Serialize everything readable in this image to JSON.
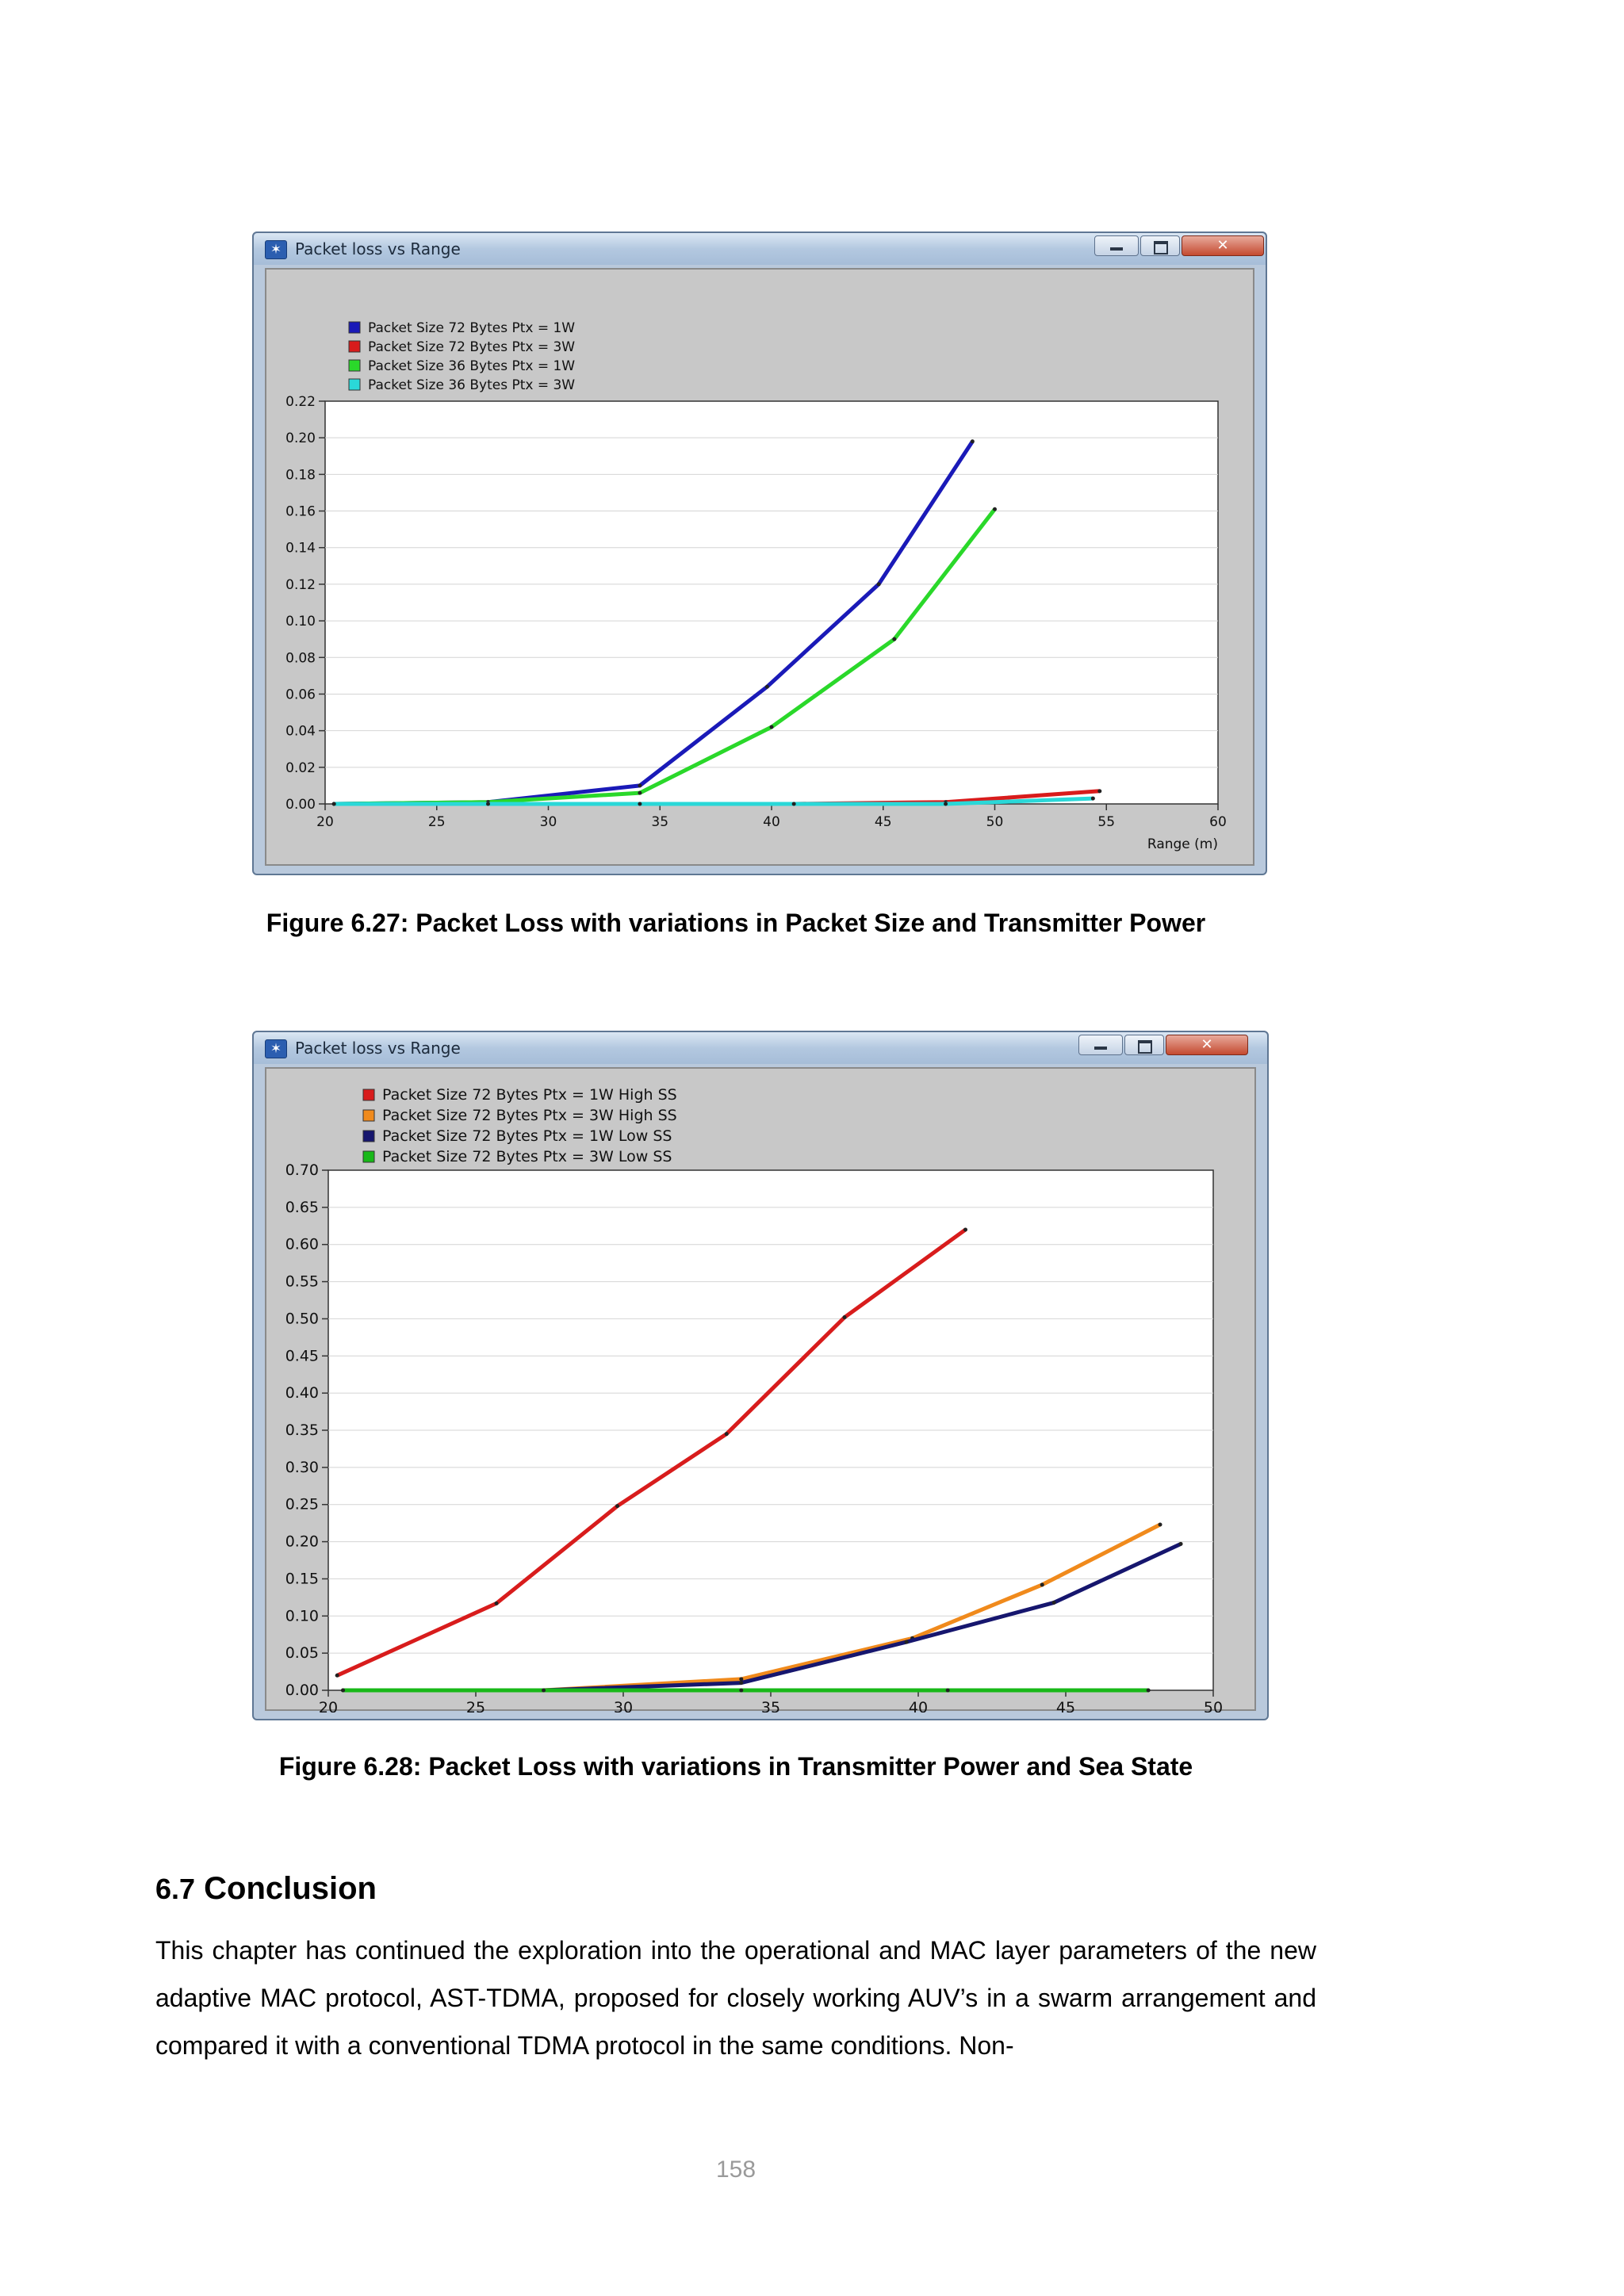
{
  "windows": [
    {
      "title": "Packet loss vs Range",
      "app_icon": "✶",
      "buttons": {
        "minimize": "minimize-icon",
        "maximize": "maximize-icon",
        "close": "✕"
      }
    },
    {
      "title": "Packet loss vs Range",
      "app_icon": "✶",
      "buttons": {
        "minimize": "minimize-icon",
        "maximize": "maximize-icon",
        "close": "✕"
      }
    }
  ],
  "chart_data": [
    {
      "type": "line",
      "title": "",
      "xlabel": "Range (m)",
      "ylabel": "",
      "xlim": [
        20,
        60
      ],
      "ylim": [
        0,
        0.22
      ],
      "xticks": [
        "20",
        "25",
        "30",
        "35",
        "40",
        "45",
        "50",
        "55",
        "60"
      ],
      "yticks": [
        "0.00",
        "0.02",
        "0.04",
        "0.06",
        "0.08",
        "0.10",
        "0.12",
        "0.14",
        "0.16",
        "0.18",
        "0.20",
        "0.22"
      ],
      "grid": true,
      "legend": "top-left",
      "series": [
        {
          "name": "Packet Size 72 Bytes Ptx = 1W",
          "color": "#1a1ab8",
          "x": [
            20.4,
            27.3,
            34.1,
            39.8,
            44.8,
            49.0
          ],
          "y": [
            0.0,
            0.001,
            0.01,
            0.064,
            0.12,
            0.198
          ]
        },
        {
          "name": "Packet Size 72 Bytes Ptx = 3W",
          "color": "#d81c1c",
          "x": [
            20.4,
            27.3,
            34.1,
            41.0,
            47.8,
            54.7
          ],
          "y": [
            0.0,
            0.0,
            0.0,
            0.0,
            0.001,
            0.007
          ]
        },
        {
          "name": "Packet Size 36 Bytes Ptx = 1W",
          "color": "#2ad82a",
          "x": [
            20.4,
            27.3,
            34.1,
            40.0,
            45.5,
            50.0
          ],
          "y": [
            0.0,
            0.001,
            0.006,
            0.042,
            0.09,
            0.161
          ]
        },
        {
          "name": "Packet Size 36 Bytes Ptx = 3W",
          "color": "#2ad8d8",
          "x": [
            20.4,
            27.3,
            34.1,
            41.0,
            47.8,
            54.4
          ],
          "y": [
            0.0,
            0.0,
            0.0,
            0.0,
            0.0,
            0.003
          ]
        }
      ]
    },
    {
      "type": "line",
      "title": "",
      "xlabel": "Range (m)",
      "ylabel": "",
      "xlim": [
        20,
        50
      ],
      "ylim": [
        0,
        0.7
      ],
      "xticks": [
        "20",
        "25",
        "30",
        "35",
        "40",
        "45",
        "50"
      ],
      "yticks": [
        "0.00",
        "0.05",
        "0.10",
        "0.15",
        "0.20",
        "0.25",
        "0.30",
        "0.35",
        "0.40",
        "0.45",
        "0.50",
        "0.55",
        "0.60",
        "0.65",
        "0.70"
      ],
      "grid": true,
      "legend": "top-left",
      "series": [
        {
          "name": "Packet Size 72 Bytes Ptx = 1W High SS",
          "color": "#d81c1c",
          "x": [
            20.3,
            25.7,
            29.8,
            33.5,
            37.5,
            41.6
          ],
          "y": [
            0.02,
            0.117,
            0.248,
            0.345,
            0.502,
            0.62
          ]
        },
        {
          "name": "Packet Size 72 Bytes Ptx = 3W High SS",
          "color": "#f08a1c",
          "x": [
            20.5,
            27.3,
            34.0,
            39.8,
            44.2,
            48.2
          ],
          "y": [
            0.0,
            0.0,
            0.015,
            0.07,
            0.142,
            0.223
          ]
        },
        {
          "name": "Packet Size 72 Bytes Ptx = 1W Low SS",
          "color": "#16166e",
          "x": [
            20.5,
            27.3,
            34.0,
            39.6,
            44.6,
            48.9
          ],
          "y": [
            0.0,
            0.0,
            0.01,
            0.065,
            0.118,
            0.197
          ]
        },
        {
          "name": "Packet Size 72 Bytes Ptx = 3W Low SS",
          "color": "#18b818",
          "x": [
            20.5,
            27.3,
            34.0,
            41.0,
            47.8
          ],
          "y": [
            0.0,
            0.0,
            0.0,
            0.0,
            0.0
          ]
        }
      ]
    }
  ],
  "captions": {
    "fig1": "Figure 6.27: Packet Loss with variations in Packet Size and Transmitter Power",
    "fig2": "Figure 6.28: Packet Loss with variations in Transmitter Power and Sea State"
  },
  "section": {
    "number": "6.7",
    "title": "Conclusion",
    "paragraph": "This chapter has continued the exploration into the operational and MAC layer parameters of the new adaptive MAC protocol, AST-TDMA, proposed for closely working AUV’s in a swarm arrangement and compared it with a conventional TDMA protocol in the same conditions. Non-"
  },
  "page_number": "158"
}
